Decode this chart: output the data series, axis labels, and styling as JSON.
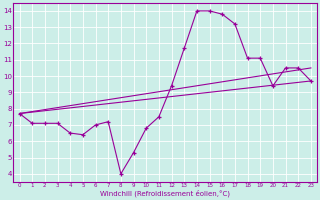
{
  "xlabel": "Windchill (Refroidissement éolien,°C)",
  "bg_color": "#cceee8",
  "line_color": "#990099",
  "grid_color": "#ffffff",
  "xlim": [
    -0.5,
    23.5
  ],
  "ylim": [
    3.5,
    14.5
  ],
  "yticks": [
    4,
    5,
    6,
    7,
    8,
    9,
    10,
    11,
    12,
    13,
    14
  ],
  "xticks": [
    0,
    1,
    2,
    3,
    4,
    5,
    6,
    7,
    8,
    9,
    10,
    11,
    12,
    13,
    14,
    15,
    16,
    17,
    18,
    19,
    20,
    21,
    22,
    23
  ],
  "series1_x": [
    0,
    1,
    2,
    3,
    4,
    5,
    6,
    7,
    8,
    9,
    10,
    11,
    12,
    13,
    14,
    15,
    16,
    17,
    18,
    19,
    20,
    21,
    22,
    23
  ],
  "series1_y": [
    7.7,
    7.1,
    7.1,
    7.1,
    6.5,
    6.4,
    7.0,
    7.2,
    4.0,
    5.3,
    6.8,
    7.5,
    9.4,
    11.7,
    14.0,
    14.0,
    13.8,
    13.2,
    11.1,
    11.1,
    9.4,
    10.5,
    10.5,
    9.7
  ],
  "line2_x": [
    0,
    23
  ],
  "line2_y": [
    7.7,
    10.5
  ],
  "line3_x": [
    0,
    23
  ],
  "line3_y": [
    7.7,
    9.7
  ]
}
